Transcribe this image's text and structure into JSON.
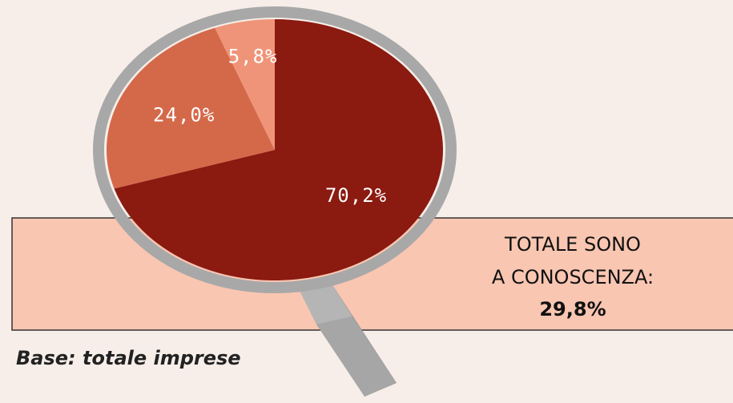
{
  "chart_data": {
    "type": "pie",
    "values": [
      70.2,
      24.0,
      5.8
    ],
    "value_labels": [
      "70,2%",
      "24,0%",
      "5,8%"
    ],
    "colors": [
      "#8b1a10",
      "#d4694a",
      "#ef9478"
    ],
    "annotation": {
      "lines": [
        "TOTALE SONO",
        "A CONOSCENZA:"
      ],
      "value": "29,8%"
    },
    "footnote": "Base: totale imprese"
  }
}
